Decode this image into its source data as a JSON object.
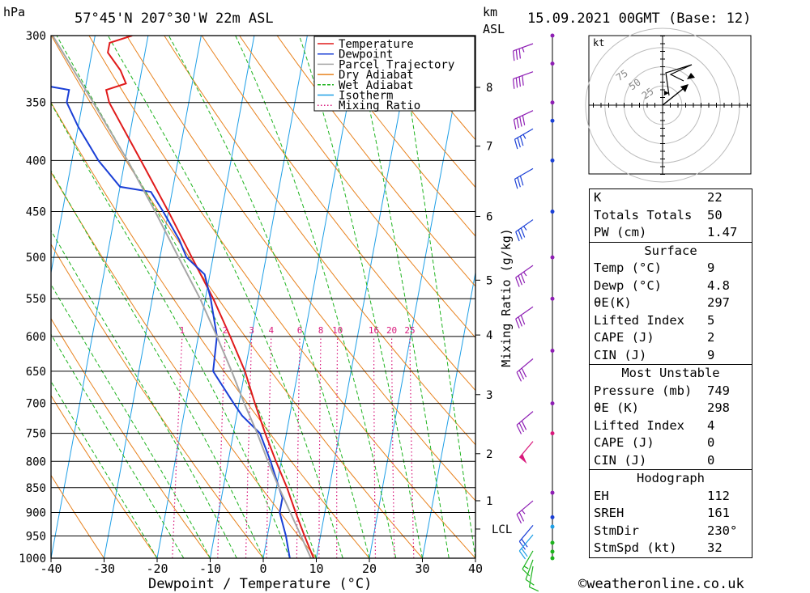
{
  "header": {
    "pressure_unit": "hPa",
    "location": "57°45'N  207°30'W  22m  ASL",
    "height_unit_top": "km",
    "height_unit_bottom": "ASL",
    "datetime": "15.09.2021  00GMT  (Base: 12)"
  },
  "footer": {
    "xlabel": "Dewpoint / Temperature (°C)",
    "credit": "©weatheronline.co.uk"
  },
  "chart_data": {
    "type": "line",
    "title": "57°45'N 207°30'W 22m ASL",
    "xlabel": "Dewpoint / Temperature (°C)",
    "ylabel": "hPa",
    "xlim": [
      -40,
      40
    ],
    "ylim": [
      1000,
      300
    ],
    "skew_deg_per_decade": 35,
    "pressure_levels": [
      300,
      350,
      400,
      450,
      500,
      550,
      600,
      650,
      700,
      750,
      800,
      850,
      900,
      950,
      1000
    ],
    "temp_ticks": [
      -40,
      -30,
      -20,
      -10,
      0,
      10,
      20,
      30,
      40
    ],
    "km_ticks": [
      {
        "label": "1",
        "p": 876
      },
      {
        "label": "2",
        "p": 786
      },
      {
        "label": "3",
        "p": 686
      },
      {
        "label": "4",
        "p": 598
      },
      {
        "label": "5",
        "p": 527
      },
      {
        "label": "6",
        "p": 455
      },
      {
        "label": "7",
        "p": 387
      },
      {
        "label": "8",
        "p": 338
      }
    ],
    "lcl": {
      "label": "LCL",
      "p": 935
    },
    "right_axis_label": "Mixing Ratio (g/kg)",
    "mixing_ratio_labels": [
      {
        "label": "1",
        "w": 1
      },
      {
        "label": "2",
        "w": 2
      },
      {
        "label": "3",
        "w": 3
      },
      {
        "label": "4",
        "w": 4
      },
      {
        "label": "6",
        "w": 6
      },
      {
        "label": "8",
        "w": 8
      },
      {
        "label": "10",
        "w": 10
      },
      {
        "label": "16",
        "w": 16
      },
      {
        "label": "20",
        "w": 20
      },
      {
        "label": "25",
        "w": 25
      }
    ],
    "legend": [
      {
        "label": "Temperature",
        "color": "#e01b1b",
        "style": "solid"
      },
      {
        "label": "Dewpoint",
        "color": "#1a3fd6",
        "style": "solid"
      },
      {
        "label": "Parcel Trajectory",
        "color": "#a6a6a6",
        "style": "solid"
      },
      {
        "label": "Dry Adiabat",
        "color": "#e8821e",
        "style": "solid"
      },
      {
        "label": "Wet Adiabat",
        "color": "#1db31d",
        "style": "dashed"
      },
      {
        "label": "Isotherm",
        "color": "#1f9fe6",
        "style": "solid"
      },
      {
        "label": "Mixing Ratio",
        "color": "#d9197c",
        "style": "dotted"
      }
    ],
    "series": [
      {
        "name": "Temperature",
        "color": "#e01b1b",
        "points": [
          [
            1000,
            9.5
          ],
          [
            950,
            7
          ],
          [
            900,
            4.5
          ],
          [
            850,
            2
          ],
          [
            800,
            -1
          ],
          [
            750,
            -4
          ],
          [
            700,
            -7
          ],
          [
            650,
            -10
          ],
          [
            600,
            -14
          ],
          [
            550,
            -18.5
          ],
          [
            500,
            -24
          ],
          [
            450,
            -30
          ],
          [
            400,
            -37
          ],
          [
            350,
            -45
          ],
          [
            340,
            -46
          ],
          [
            335,
            -42.5
          ],
          [
            325,
            -44
          ],
          [
            312,
            -47
          ],
          [
            305,
            -47
          ],
          [
            300,
            -43
          ]
        ]
      },
      {
        "name": "Dewpoint",
        "color": "#1a3fd6",
        "points": [
          [
            1000,
            5
          ],
          [
            950,
            3.5
          ],
          [
            900,
            1.5
          ],
          [
            870,
            1.5
          ],
          [
            850,
            0.5
          ],
          [
            800,
            -2
          ],
          [
            750,
            -5
          ],
          [
            720,
            -9
          ],
          [
            700,
            -11
          ],
          [
            650,
            -16
          ],
          [
            600,
            -16.5
          ],
          [
            550,
            -19
          ],
          [
            520,
            -21
          ],
          [
            500,
            -25
          ],
          [
            480,
            -27
          ],
          [
            450,
            -31
          ],
          [
            430,
            -34
          ],
          [
            425,
            -40
          ],
          [
            400,
            -45
          ],
          [
            370,
            -50
          ],
          [
            350,
            -53
          ],
          [
            340,
            -53
          ],
          [
            335,
            -60
          ],
          [
            330,
            -63
          ],
          [
            320,
            -65
          ],
          [
            310,
            -65
          ],
          [
            300,
            -62
          ]
        ]
      },
      {
        "name": "Parcel Trajectory",
        "color": "#a6a6a6",
        "points": [
          [
            1000,
            9
          ],
          [
            935,
            5.5
          ],
          [
            900,
            3.5
          ],
          [
            850,
            0.5
          ],
          [
            800,
            -2.5
          ],
          [
            750,
            -5.5
          ],
          [
            700,
            -9
          ],
          [
            650,
            -12.5
          ],
          [
            600,
            -16.5
          ],
          [
            550,
            -21
          ],
          [
            500,
            -26.5
          ],
          [
            450,
            -32.5
          ],
          [
            400,
            -39.5
          ],
          [
            350,
            -48
          ],
          [
            300,
            -58
          ]
        ]
      }
    ]
  },
  "hodograph": {
    "unit": "kt",
    "ring_labels": [
      "25",
      "50",
      "75"
    ]
  },
  "wind_barbs": [
    {
      "p": 300,
      "color": "#8e1eb4",
      "dir": 250,
      "kt": 35
    },
    {
      "p": 320,
      "color": "#8e1eb4",
      "dir": 250,
      "kt": 40
    },
    {
      "p": 350,
      "color": "#8e1eb4",
      "dir": 245,
      "kt": 40
    },
    {
      "p": 365,
      "color": "#1a3fd6",
      "dir": 240,
      "kt": 35
    },
    {
      "p": 400,
      "color": "#1a3fd6",
      "dir": 240,
      "kt": 30
    },
    {
      "p": 450,
      "color": "#1a3fd6",
      "dir": 235,
      "kt": 35
    },
    {
      "p": 500,
      "color": "#8e1eb4",
      "dir": 235,
      "kt": 35
    },
    {
      "p": 550,
      "color": "#8e1eb4",
      "dir": 235,
      "kt": 30
    },
    {
      "p": 620,
      "color": "#8e1eb4",
      "dir": 230,
      "kt": 30
    },
    {
      "p": 700,
      "color": "#8e1eb4",
      "dir": 230,
      "kt": 30
    },
    {
      "p": 750,
      "color": "#d9197c",
      "dir": 220,
      "kt": 50
    },
    {
      "p": 860,
      "color": "#8e1eb4",
      "dir": 230,
      "kt": 25
    },
    {
      "p": 910,
      "color": "#1a3fd6",
      "dir": 220,
      "kt": 20
    },
    {
      "p": 930,
      "color": "#1f9fe6",
      "dir": 220,
      "kt": 20
    },
    {
      "p": 965,
      "color": "#1db31d",
      "dir": 210,
      "kt": 15
    },
    {
      "p": 985,
      "color": "#1db31d",
      "dir": 200,
      "kt": 10
    },
    {
      "p": 1000,
      "color": "#1db31d",
      "dir": 190,
      "kt": 10
    }
  ],
  "indices": {
    "rows": [
      {
        "label": "K",
        "value": "22"
      },
      {
        "label": "Totals Totals",
        "value": "50"
      },
      {
        "label": "PW (cm)",
        "value": "1.47"
      }
    ],
    "surface": {
      "title": "Surface",
      "rows": [
        {
          "label": "Temp (°C)",
          "value": "9"
        },
        {
          "label": "Dewp (°C)",
          "value": "4.8"
        },
        {
          "label": "θE(K)",
          "value": "297"
        },
        {
          "label": "Lifted Index",
          "value": "5"
        },
        {
          "label": "CAPE (J)",
          "value": "2"
        },
        {
          "label": "CIN (J)",
          "value": "9"
        }
      ]
    },
    "most_unstable": {
      "title": "Most Unstable",
      "rows": [
        {
          "label": "Pressure (mb)",
          "value": "749"
        },
        {
          "label": "θE (K)",
          "value": "298"
        },
        {
          "label": "Lifted Index",
          "value": "4"
        },
        {
          "label": "CAPE (J)",
          "value": "0"
        },
        {
          "label": "CIN (J)",
          "value": "0"
        }
      ]
    },
    "hodograph": {
      "title": "Hodograph",
      "rows": [
        {
          "label": "EH",
          "value": "112"
        },
        {
          "label": "SREH",
          "value": "161"
        },
        {
          "label": "StmDir",
          "value": "230°"
        },
        {
          "label": "StmSpd (kt)",
          "value": "32"
        }
      ]
    }
  }
}
